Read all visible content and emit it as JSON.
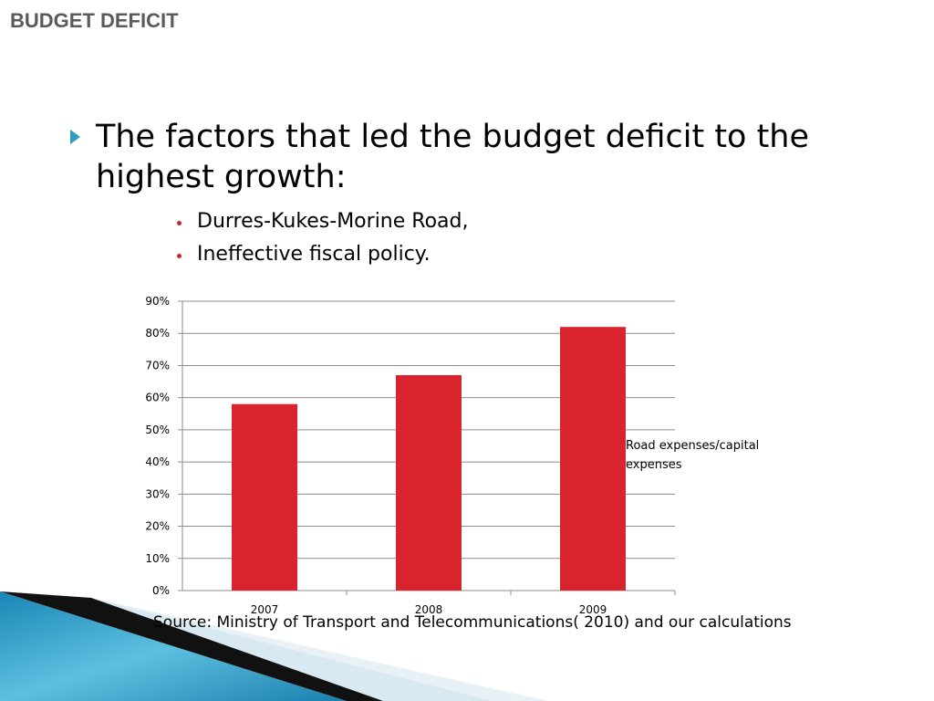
{
  "slide": {
    "title": "BUDGET DEFICIT",
    "main_bullet": "The factors that led the budget deficit to the highest growth:",
    "sub_bullets": [
      "Durres-Kukes-Morine Road,",
      "Ineffective fiscal policy."
    ],
    "source": "Source: Ministry of Transport and Telecommunications( 2010) and our calculations"
  },
  "colors": {
    "title": "#5a5a5a",
    "accent_arrow": "#2a9fc4",
    "bar": "#d9232d",
    "grid": "#8c8c8c"
  },
  "chart_data": {
    "type": "bar",
    "categories": [
      "2007",
      "2008",
      "2009"
    ],
    "series": [
      {
        "name": "Road expenses/capital expenses",
        "values": [
          58,
          67,
          82
        ]
      }
    ],
    "y_ticks": [
      "0%",
      "10%",
      "20%",
      "30%",
      "40%",
      "50%",
      "60%",
      "70%",
      "80%",
      "90%"
    ],
    "ylim": [
      0,
      90
    ],
    "y_unit": "%",
    "grid": true,
    "legend_position": "right"
  }
}
